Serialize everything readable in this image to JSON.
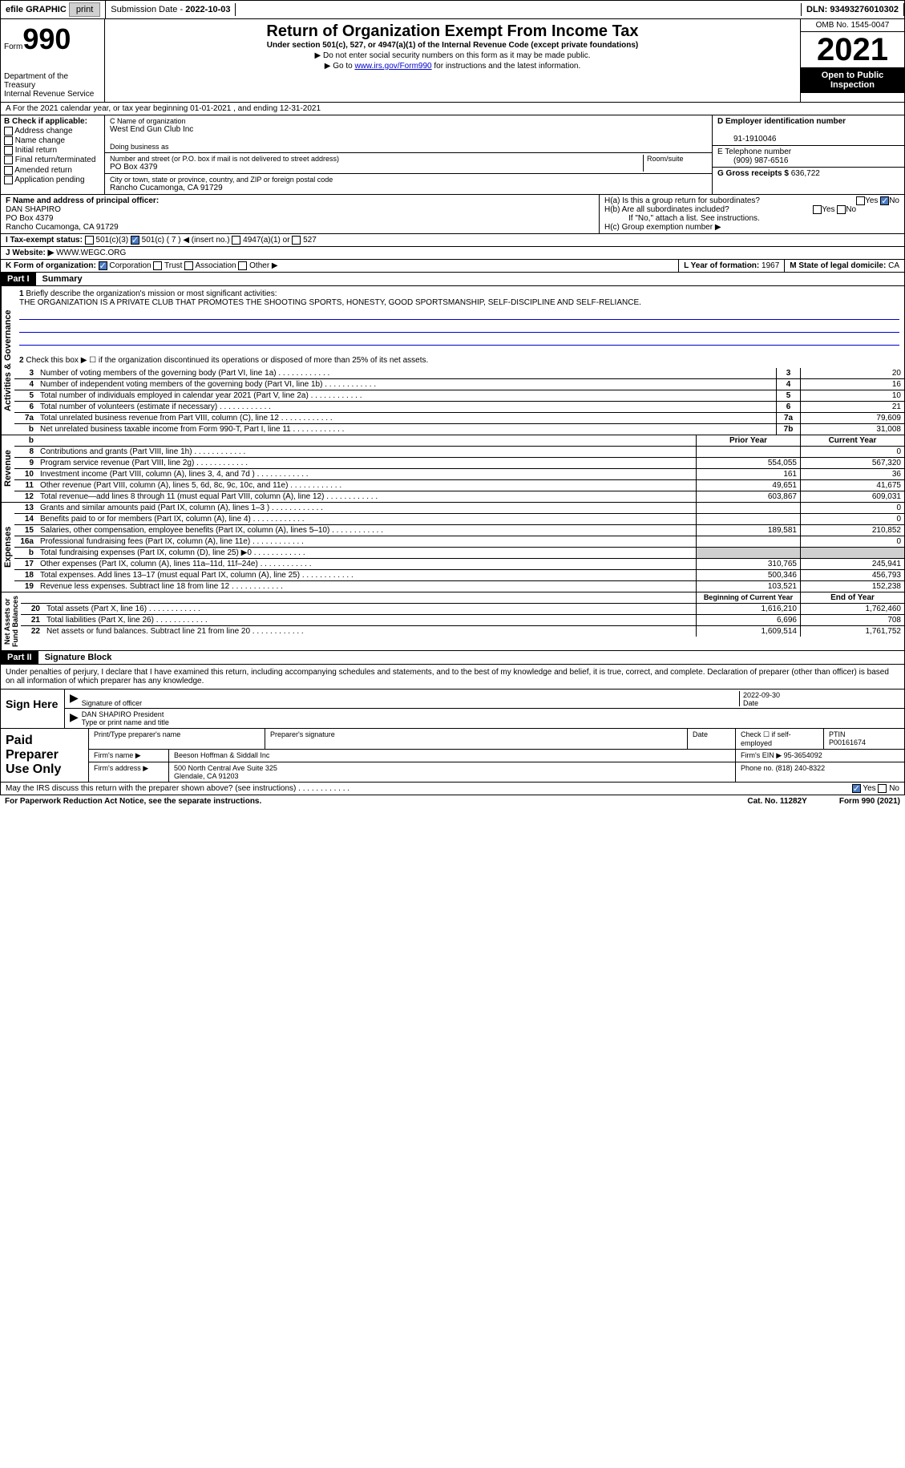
{
  "topbar": {
    "efile": "efile GRAPHIC",
    "print": "print",
    "subdate_label": "Submission Date -",
    "subdate": "2022-10-03",
    "dln_label": "DLN:",
    "dln": "93493276010302"
  },
  "header": {
    "form_label": "Form",
    "form_num": "990",
    "dept": "Department of the Treasury\nInternal Revenue Service",
    "title": "Return of Organization Exempt From Income Tax",
    "subtitle": "Under section 501(c), 527, or 4947(a)(1) of the Internal Revenue Code (except private foundations)",
    "note1": "▶ Do not enter social security numbers on this form as it may be made public.",
    "note2_pre": "▶ Go to ",
    "note2_link": "www.irs.gov/Form990",
    "note2_post": " for instructions and the latest information.",
    "omb": "OMB No. 1545-0047",
    "year": "2021",
    "inspect": "Open to Public Inspection"
  },
  "row_a": "A For the 2021 calendar year, or tax year beginning 01-01-2021   , and ending 12-31-2021",
  "col_b": {
    "title": "B Check if applicable:",
    "items": [
      "Address change",
      "Name change",
      "Initial return",
      "Final return/terminated",
      "Amended return",
      "Application pending"
    ]
  },
  "col_c": {
    "name_label": "C Name of organization",
    "name": "West End Gun Club Inc",
    "dba_label": "Doing business as",
    "addr_label": "Number and street (or P.O. box if mail is not delivered to street address)",
    "room_label": "Room/suite",
    "addr": "PO Box 4379",
    "city_label": "City or town, state or province, country, and ZIP or foreign postal code",
    "city": "Rancho Cucamonga, CA  91729"
  },
  "col_d": {
    "ein_label": "D Employer identification number",
    "ein": "91-1910046",
    "phone_label": "E Telephone number",
    "phone": "(909) 987-6516",
    "gross_label": "G Gross receipts $",
    "gross": "636,722"
  },
  "row_f": {
    "label": "F Name and address of principal officer:",
    "name": "DAN SHAPIRO",
    "addr1": "PO Box 4379",
    "addr2": "Rancho Cucamonga, CA  91729"
  },
  "row_h": {
    "ha": "H(a)  Is this a group return for subordinates?",
    "hb": "H(b)  Are all subordinates included?",
    "hb_note": "If \"No,\" attach a list. See instructions.",
    "hc": "H(c)  Group exemption number ▶",
    "yes": "Yes",
    "no": "No"
  },
  "row_i": {
    "label": "I   Tax-exempt status:",
    "c3": "501(c)(3)",
    "c": "501(c) ( 7 ) ◀ (insert no.)",
    "a4947": "4947(a)(1) or",
    "s527": "527"
  },
  "row_j": {
    "label": "J   Website: ▶",
    "val": "WWW.WEGC.ORG"
  },
  "row_k": {
    "label": "K Form of organization:",
    "corp": "Corporation",
    "trust": "Trust",
    "assoc": "Association",
    "other": "Other ▶",
    "l_label": "L Year of formation:",
    "l_val": "1967",
    "m_label": "M State of legal domicile:",
    "m_val": "CA"
  },
  "part1": {
    "hdr": "Part I",
    "title": "Summary",
    "q1": "Briefly describe the organization's mission or most significant activities:",
    "mission": "THE ORGANIZATION IS A PRIVATE CLUB THAT PROMOTES THE SHOOTING SPORTS, HONESTY, GOOD SPORTSMANSHIP, SELF-DISCIPLINE AND SELF-RELIANCE.",
    "q2": "Check this box ▶ ☐ if the organization discontinued its operations or disposed of more than 25% of its net assets.",
    "prior_hdr": "Prior Year",
    "curr_hdr": "Current Year",
    "beg_hdr": "Beginning of Current Year",
    "end_hdr": "End of Year"
  },
  "gov_rows": [
    {
      "n": "3",
      "d": "Number of voting members of the governing body (Part VI, line 1a)",
      "b": "3",
      "v": "20"
    },
    {
      "n": "4",
      "d": "Number of independent voting members of the governing body (Part VI, line 1b)",
      "b": "4",
      "v": "16"
    },
    {
      "n": "5",
      "d": "Total number of individuals employed in calendar year 2021 (Part V, line 2a)",
      "b": "5",
      "v": "10"
    },
    {
      "n": "6",
      "d": "Total number of volunteers (estimate if necessary)",
      "b": "6",
      "v": "21"
    },
    {
      "n": "7a",
      "d": "Total unrelated business revenue from Part VIII, column (C), line 12",
      "b": "7a",
      "v": "79,609"
    },
    {
      "n": "b",
      "d": "Net unrelated business taxable income from Form 990-T, Part I, line 11",
      "b": "7b",
      "v": "31,008"
    }
  ],
  "rev_rows": [
    {
      "n": "8",
      "d": "Contributions and grants (Part VIII, line 1h)",
      "p": "",
      "c": "0"
    },
    {
      "n": "9",
      "d": "Program service revenue (Part VIII, line 2g)",
      "p": "554,055",
      "c": "567,320"
    },
    {
      "n": "10",
      "d": "Investment income (Part VIII, column (A), lines 3, 4, and 7d )",
      "p": "161",
      "c": "36"
    },
    {
      "n": "11",
      "d": "Other revenue (Part VIII, column (A), lines 5, 6d, 8c, 9c, 10c, and 11e)",
      "p": "49,651",
      "c": "41,675"
    },
    {
      "n": "12",
      "d": "Total revenue—add lines 8 through 11 (must equal Part VIII, column (A), line 12)",
      "p": "603,867",
      "c": "609,031"
    }
  ],
  "exp_rows": [
    {
      "n": "13",
      "d": "Grants and similar amounts paid (Part IX, column (A), lines 1–3 )",
      "p": "",
      "c": "0"
    },
    {
      "n": "14",
      "d": "Benefits paid to or for members (Part IX, column (A), line 4)",
      "p": "",
      "c": "0"
    },
    {
      "n": "15",
      "d": "Salaries, other compensation, employee benefits (Part IX, column (A), lines 5–10)",
      "p": "189,581",
      "c": "210,852"
    },
    {
      "n": "16a",
      "d": "Professional fundraising fees (Part IX, column (A), line 11e)",
      "p": "",
      "c": "0"
    },
    {
      "n": "b",
      "d": "Total fundraising expenses (Part IX, column (D), line 25) ▶0",
      "p": "—",
      "c": "—"
    },
    {
      "n": "17",
      "d": "Other expenses (Part IX, column (A), lines 11a–11d, 11f–24e)",
      "p": "310,765",
      "c": "245,941"
    },
    {
      "n": "18",
      "d": "Total expenses. Add lines 13–17 (must equal Part IX, column (A), line 25)",
      "p": "500,346",
      "c": "456,793"
    },
    {
      "n": "19",
      "d": "Revenue less expenses. Subtract line 18 from line 12",
      "p": "103,521",
      "c": "152,238"
    }
  ],
  "net_rows": [
    {
      "n": "20",
      "d": "Total assets (Part X, line 16)",
      "p": "1,616,210",
      "c": "1,762,460"
    },
    {
      "n": "21",
      "d": "Total liabilities (Part X, line 26)",
      "p": "6,696",
      "c": "708"
    },
    {
      "n": "22",
      "d": "Net assets or fund balances. Subtract line 21 from line 20",
      "p": "1,609,514",
      "c": "1,761,752"
    }
  ],
  "part2": {
    "hdr": "Part II",
    "title": "Signature Block",
    "decl": "Under penalties of perjury, I declare that I have examined this return, including accompanying schedules and statements, and to the best of my knowledge and belief, it is true, correct, and complete. Declaration of preparer (other than officer) is based on all information of which preparer has any knowledge."
  },
  "sign": {
    "label": "Sign Here",
    "sig_label": "Signature of officer",
    "date": "2022-09-30",
    "date_label": "Date",
    "name": "DAN SHAPIRO  President",
    "name_label": "Type or print name and title"
  },
  "prep": {
    "label": "Paid Preparer Use Only",
    "pname_label": "Print/Type preparer's name",
    "psig_label": "Preparer's signature",
    "pdate_label": "Date",
    "self_label": "Check ☐ if self-employed",
    "ptin_label": "PTIN",
    "ptin": "P00161674",
    "firm_label": "Firm's name   ▶",
    "firm": "Beeson Hoffman & Siddall Inc",
    "ein_label": "Firm's EIN ▶",
    "ein": "95-3654092",
    "addr_label": "Firm's address ▶",
    "addr1": "500 North Central Ave Suite 325",
    "addr2": "Glendale, CA  91203",
    "phone_label": "Phone no.",
    "phone": "(818) 240-8322"
  },
  "footer": {
    "discuss": "May the IRS discuss this return with the preparer shown above? (see instructions)",
    "yes": "Yes",
    "no": "No",
    "pra": "For Paperwork Reduction Act Notice, see the separate instructions.",
    "cat": "Cat. No. 11282Y",
    "form": "Form 990 (2021)"
  }
}
